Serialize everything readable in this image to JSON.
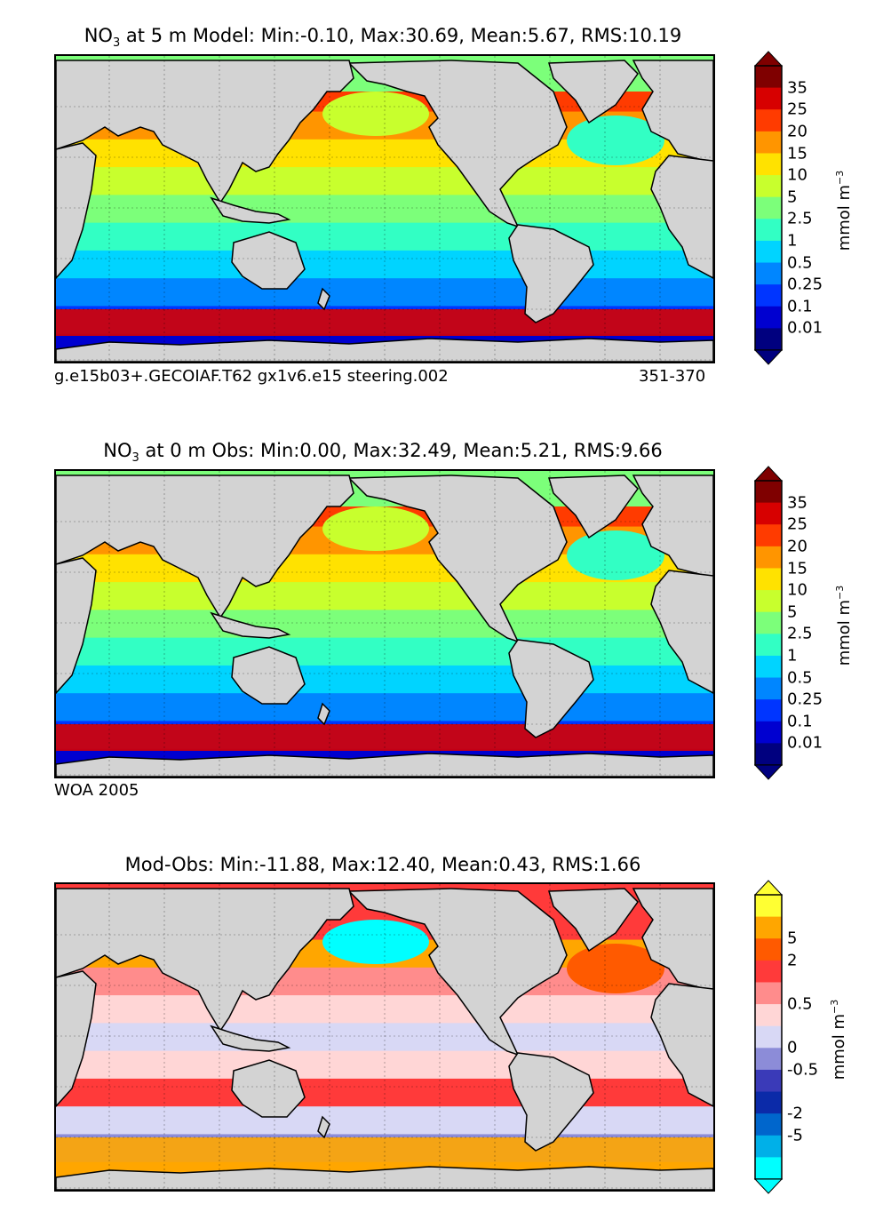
{
  "panels": [
    {
      "title_species": "NO",
      "title_sub": "3",
      "title_rest": " at 5 m Model: Min:-0.10, Max:30.69, Mean:5.67, RMS:10.19",
      "footer_left": "g.e15b03+.GECOIAF.T62 gx1v6.e15 steering.002",
      "footer_right": "351-370",
      "colorbar": {
        "ticks": [
          "35",
          "25",
          "20",
          "15",
          "10",
          "5",
          "2.5",
          "1",
          "0.5",
          "0.25",
          "0.1",
          "0.01"
        ],
        "colors": [
          "#7f0000",
          "#d70000",
          "#ff3b00",
          "#ff9500",
          "#ffe200",
          "#c8ff2d",
          "#7cff7a",
          "#32ffc4",
          "#00d4ff",
          "#0086ff",
          "#0035ff",
          "#0000d0",
          "#00007f"
        ],
        "unit": "mmol m",
        "unit_exp": "−3"
      },
      "field": {
        "bands": [
          "#d70000",
          "#ff3b00",
          "#ff9500",
          "#ffe200",
          "#c8ff2d",
          "#7cff7a",
          "#32ffc4",
          "#00d4ff",
          "#0086ff",
          "#0035ff",
          "#0000d0"
        ],
        "north": [
          "#7cff7a",
          "#c8ff2d",
          "#32ffc4"
        ]
      }
    },
    {
      "title_species": "NO",
      "title_sub": "3",
      "title_rest": " at 0 m Obs: Min:0.00, Max:32.49, Mean:5.21, RMS:9.66",
      "footer_left": "WOA 2005",
      "footer_right": "",
      "colorbar": {
        "ticks": [
          "35",
          "25",
          "20",
          "15",
          "10",
          "5",
          "2.5",
          "1",
          "0.5",
          "0.25",
          "0.1",
          "0.01"
        ],
        "colors": [
          "#7f0000",
          "#d70000",
          "#ff3b00",
          "#ff9500",
          "#ffe200",
          "#c8ff2d",
          "#7cff7a",
          "#32ffc4",
          "#00d4ff",
          "#0086ff",
          "#0035ff",
          "#0000d0",
          "#00007f"
        ],
        "unit": "mmol m",
        "unit_exp": "−3"
      },
      "field": {
        "bands": [
          "#d70000",
          "#ff3b00",
          "#ff9500",
          "#ffe200",
          "#c8ff2d",
          "#7cff7a",
          "#32ffc4",
          "#00d4ff",
          "#0086ff",
          "#0035ff",
          "#0000d0"
        ],
        "north": [
          "#7cff7a",
          "#c8ff2d",
          "#32ffc4"
        ]
      }
    },
    {
      "title_species": "",
      "title_sub": "",
      "title_rest": "Mod-Obs: Min:-11.88, Max:12.40, Mean:0.43, RMS:1.66",
      "footer_left": "",
      "footer_right": "",
      "colorbar": {
        "ticks": [
          "5",
          "2",
          "0.5",
          "0",
          "-0.5",
          "-2",
          "-5"
        ],
        "colors": [
          "#ffff33",
          "#ffa600",
          "#ff5a00",
          "#ff3a3a",
          "#ff8c8c",
          "#ffd6d6",
          "#d8d8f5",
          "#8c8cd8",
          "#3a3ab8",
          "#0b2aa8",
          "#0066cc",
          "#00b0e8",
          "#00ffff"
        ],
        "unit": "mmol m",
        "unit_exp": "−3"
      },
      "field": {
        "bands": [
          "#ffa600",
          "#ff3a3a",
          "#ffa600",
          "#ff8c8c",
          "#ffd6d6",
          "#d8d8f5",
          "#ffd6d6",
          "#ff3a3a",
          "#d8d8f5",
          "#8c8cd8",
          "#ffa600"
        ],
        "north": [
          "#ff3a3a",
          "#00ffff",
          "#ff5a00"
        ]
      }
    }
  ]
}
